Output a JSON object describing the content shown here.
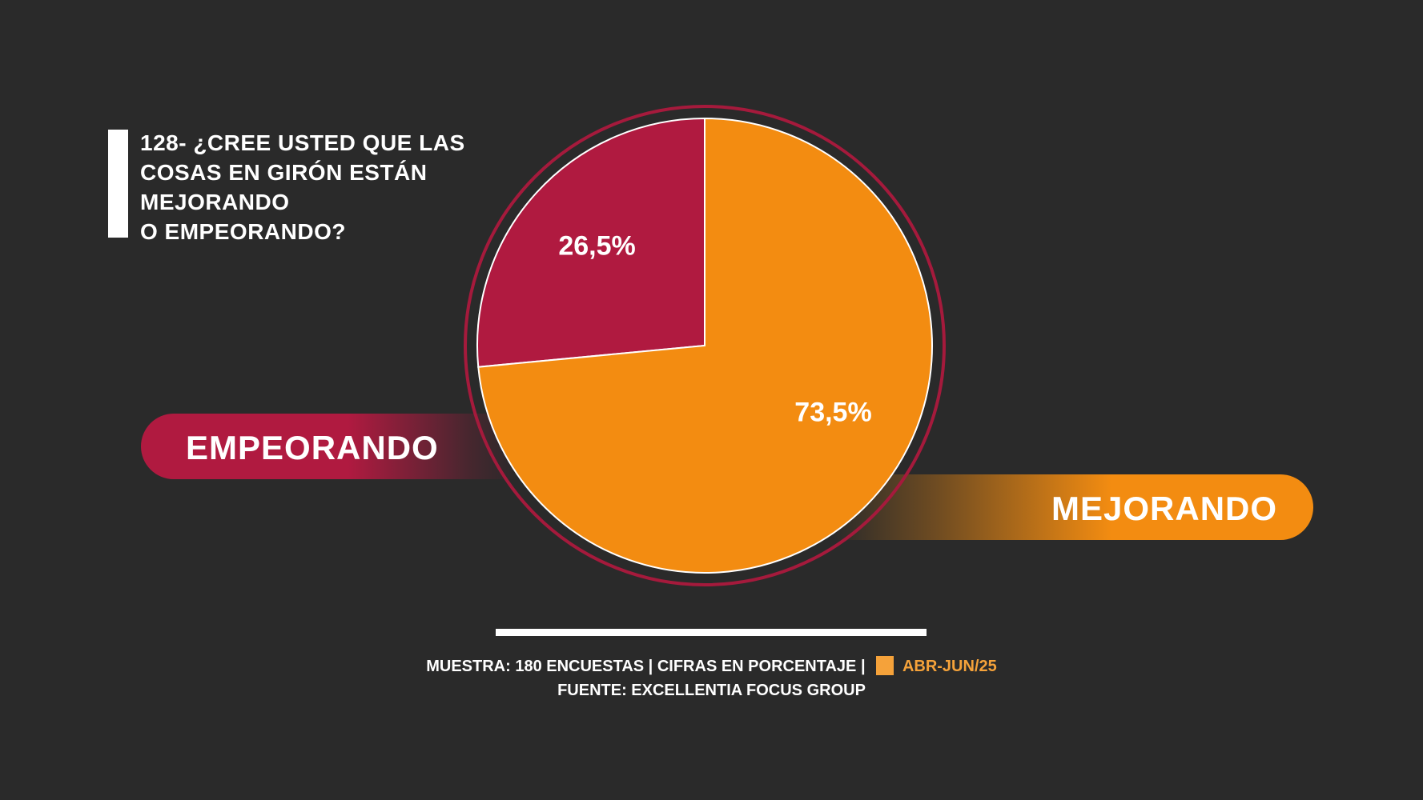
{
  "title_lines": [
    "128- ¿CREE USTED QUE LAS",
    "COSAS EN GIRÓN ESTÁN",
    "MEJORANDO",
    "O EMPEORANDO?"
  ],
  "chart_data": {
    "type": "pie",
    "categories": [
      "EMPEORANDO",
      "MEJORANDO"
    ],
    "values": [
      26.5,
      73.5
    ],
    "data_labels": [
      "26,5%",
      "73,5%"
    ],
    "colors": [
      "#b01a40",
      "#f38c11"
    ],
    "title": "128- ¿CREE USTED QUE LAS COSAS EN GIRÓN ESTÁN MEJORANDO O EMPEORANDO?"
  },
  "legend": {
    "left_label": "EMPEORANDO",
    "right_label": "MEJORANDO"
  },
  "footer": {
    "sample_text": "MUESTRA: 180 ENCUESTAS | CIFRAS EN PORCENTAJE |",
    "period": "ABR-JUN/25",
    "period_color": "#f5a23a",
    "source": "FUENTE: EXCELLENTIA FOCUS GROUP"
  }
}
